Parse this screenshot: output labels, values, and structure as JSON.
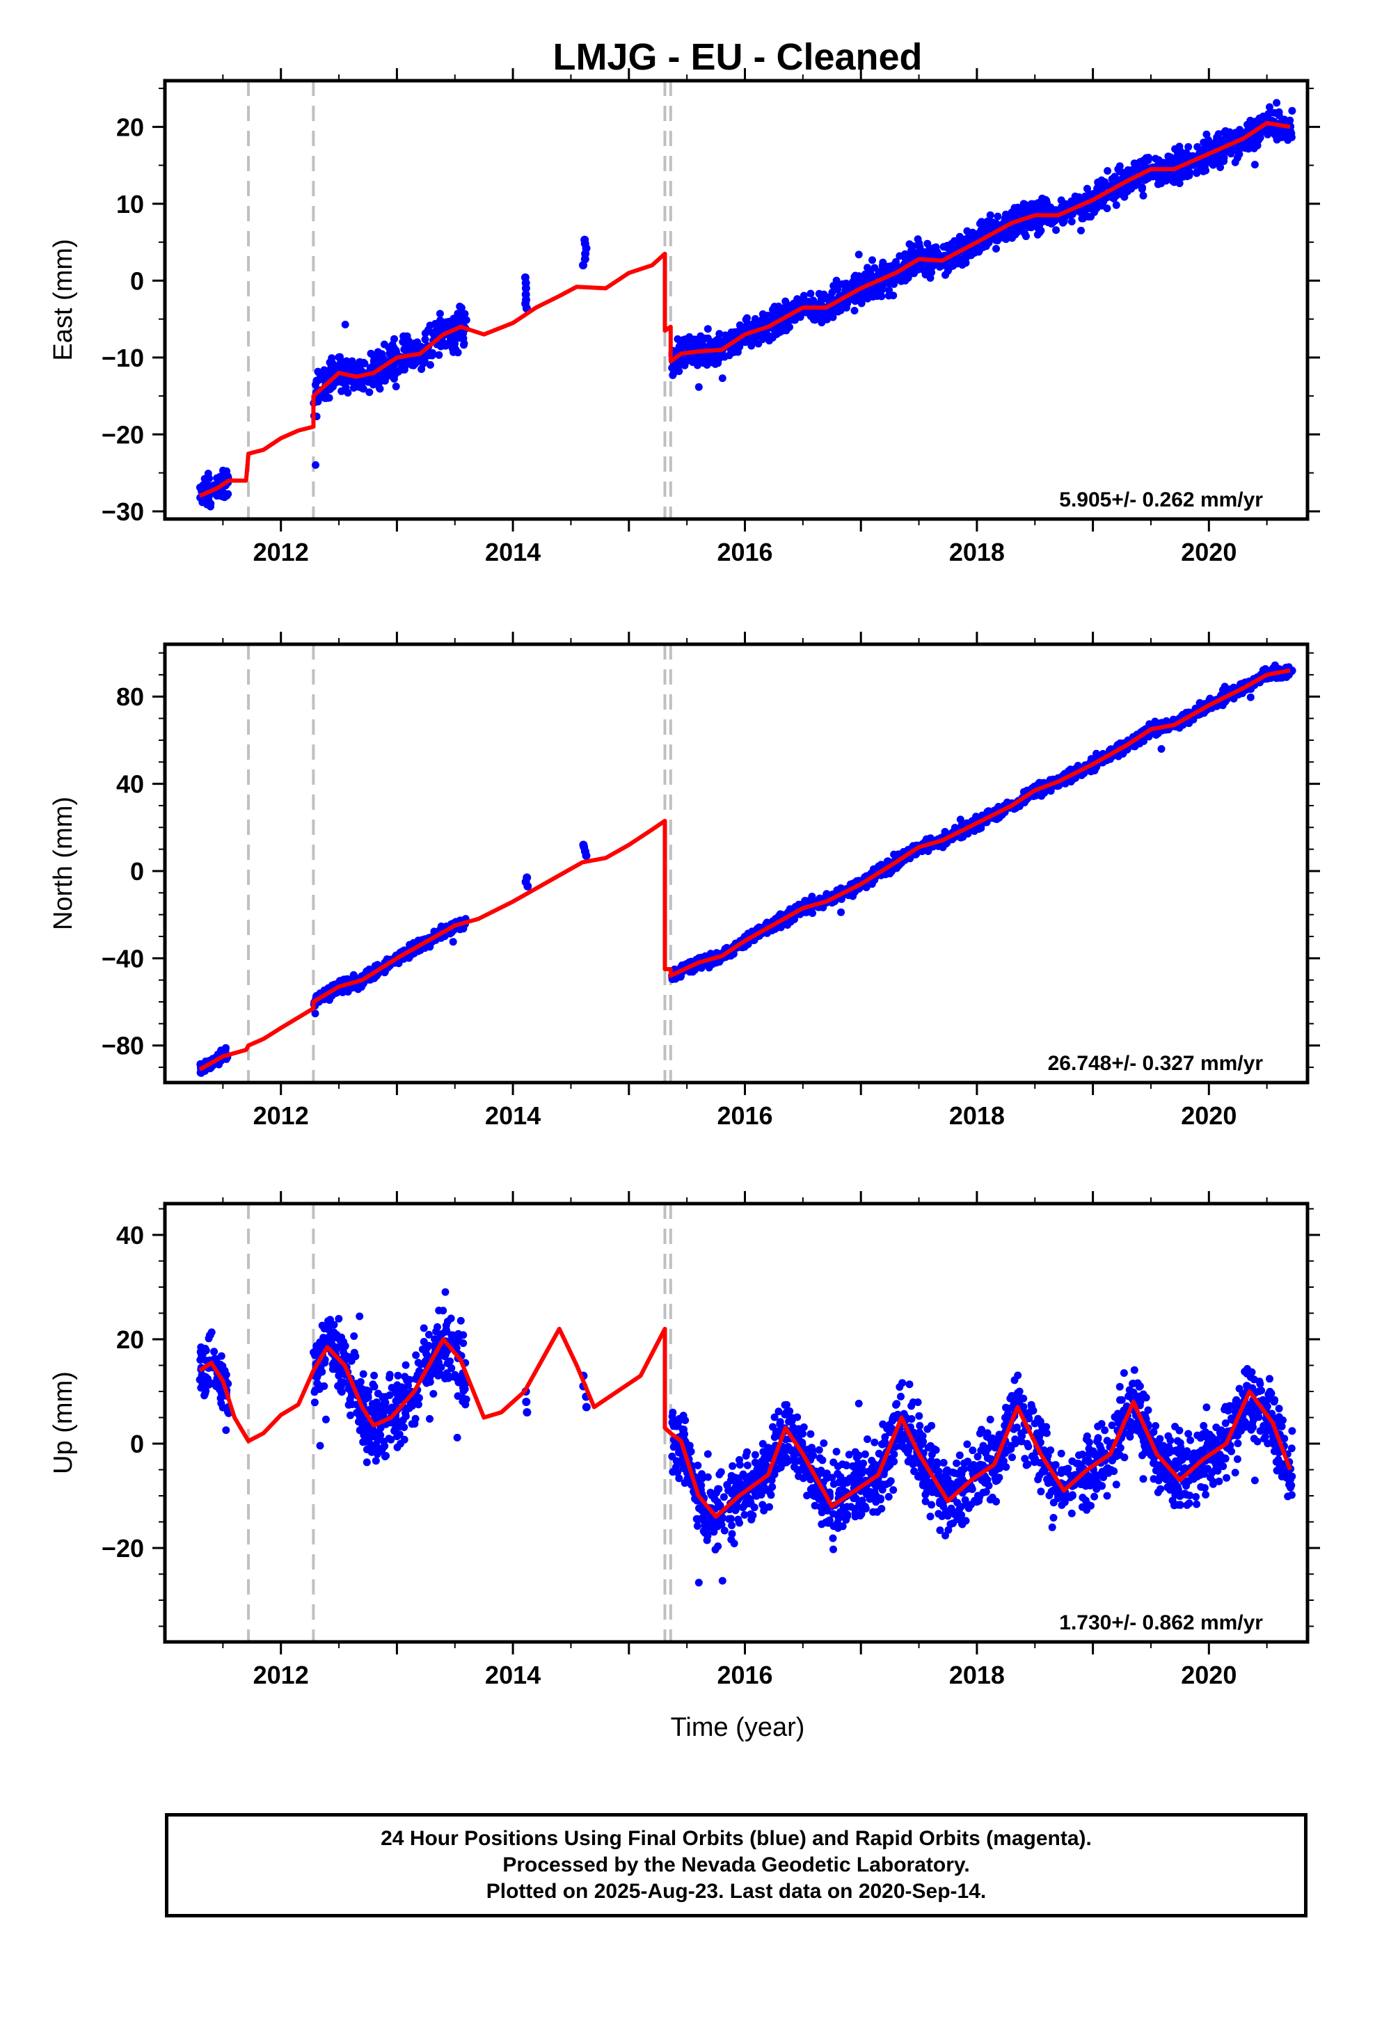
{
  "chart_data": {
    "title": "LMJG  - EU - Cleaned",
    "type": "scatter",
    "xlabel": "Time (year)",
    "xlim": [
      2011.0,
      2020.85
    ],
    "x_ticks": [
      "2012",
      "2014",
      "2016",
      "2018",
      "2020"
    ],
    "colors": {
      "final_orbits": "#0000ff",
      "model": "#ff0000",
      "breaks": "#c0c0c0"
    },
    "breaks": [
      2011.72,
      2012.28,
      2015.31,
      2015.36
    ],
    "panels": [
      {
        "name": "East",
        "ylabel": "East (mm)",
        "ylim": [
          -31,
          26
        ],
        "y_ticks": [
          "20",
          "10",
          "0",
          "−10",
          "−20",
          "−30"
        ],
        "rate": "5.905+/- 0.262 mm/yr",
        "model": [
          [
            2011.3,
            -28
          ],
          [
            2011.45,
            -27
          ],
          [
            2011.55,
            -26
          ],
          [
            2011.7,
            -26
          ],
          [
            2011.72,
            -22.5
          ],
          [
            2011.85,
            -22
          ],
          [
            2012.0,
            -20.5
          ],
          [
            2012.15,
            -19.5
          ],
          [
            2012.28,
            -19
          ],
          [
            2012.28,
            -15
          ],
          [
            2012.5,
            -12
          ],
          [
            2012.65,
            -12.5
          ],
          [
            2012.8,
            -12
          ],
          [
            2013.0,
            -10
          ],
          [
            2013.2,
            -9.5
          ],
          [
            2013.4,
            -7
          ],
          [
            2013.55,
            -6
          ],
          [
            2013.75,
            -7
          ],
          [
            2014.0,
            -5.5
          ],
          [
            2014.2,
            -3.5
          ],
          [
            2014.4,
            -2
          ],
          [
            2014.55,
            -0.8
          ],
          [
            2014.8,
            -1
          ],
          [
            2015.0,
            1
          ],
          [
            2015.2,
            2
          ],
          [
            2015.31,
            3.5
          ],
          [
            2015.31,
            -6.5
          ],
          [
            2015.36,
            -6
          ],
          [
            2015.36,
            -10.5
          ],
          [
            2015.45,
            -9.5
          ],
          [
            2015.6,
            -9.2
          ],
          [
            2015.8,
            -9
          ],
          [
            2016.0,
            -7
          ],
          [
            2016.2,
            -6
          ],
          [
            2016.5,
            -3.5
          ],
          [
            2016.7,
            -3.5
          ],
          [
            2017.0,
            -1
          ],
          [
            2017.3,
            1
          ],
          [
            2017.5,
            2.8
          ],
          [
            2017.7,
            2.6
          ],
          [
            2018.0,
            5
          ],
          [
            2018.3,
            7.5
          ],
          [
            2018.5,
            8.5
          ],
          [
            2018.7,
            8.5
          ],
          [
            2019.0,
            10.5
          ],
          [
            2019.3,
            13
          ],
          [
            2019.5,
            14.5
          ],
          [
            2019.7,
            14.5
          ],
          [
            2020.0,
            16.5
          ],
          [
            2020.3,
            18.5
          ],
          [
            2020.5,
            20.5
          ],
          [
            2020.7,
            20
          ]
        ],
        "segments": [
          {
            "x": [
              2011.3,
              2011.55
            ],
            "noise": 1.4
          },
          {
            "x": [
              2012.28,
              2013.6
            ],
            "noise": 1.8
          },
          {
            "x": [
              2015.37,
              2020.72
            ],
            "noise": 1.4
          }
        ],
        "clusters": [
          {
            "x": 2014.12,
            "y": [
              -3.6,
              -3.0,
              -2.5,
              -1.8,
              -1.0,
              -0.3,
              0.4
            ]
          },
          {
            "x": 2014.62,
            "y": [
              2.0,
              2.8,
              3.5,
              4.2,
              4.8,
              5.3
            ]
          }
        ]
      },
      {
        "name": "North",
        "ylabel": "North (mm)",
        "ylim": [
          -97,
          104
        ],
        "y_ticks": [
          "80",
          "40",
          "0",
          "−40",
          "−80"
        ],
        "rate": "26.748+/- 0.327 mm/yr",
        "model": [
          [
            2011.3,
            -91
          ],
          [
            2011.5,
            -85
          ],
          [
            2011.7,
            -82
          ],
          [
            2011.72,
            -80
          ],
          [
            2011.85,
            -77
          ],
          [
            2012.0,
            -72
          ],
          [
            2012.28,
            -63
          ],
          [
            2012.28,
            -60
          ],
          [
            2012.5,
            -53
          ],
          [
            2012.7,
            -50
          ],
          [
            2013.0,
            -40
          ],
          [
            2013.3,
            -31
          ],
          [
            2013.5,
            -25
          ],
          [
            2013.7,
            -22
          ],
          [
            2014.0,
            -14
          ],
          [
            2014.3,
            -5
          ],
          [
            2014.6,
            4
          ],
          [
            2014.8,
            6
          ],
          [
            2015.0,
            12
          ],
          [
            2015.2,
            19
          ],
          [
            2015.31,
            23
          ],
          [
            2015.31,
            -45
          ],
          [
            2015.36,
            -45
          ],
          [
            2015.36,
            -48
          ],
          [
            2015.6,
            -42
          ],
          [
            2015.8,
            -39
          ],
          [
            2016.0,
            -32
          ],
          [
            2016.3,
            -23
          ],
          [
            2016.5,
            -17
          ],
          [
            2016.7,
            -14
          ],
          [
            2017.0,
            -6
          ],
          [
            2017.3,
            4
          ],
          [
            2017.5,
            11
          ],
          [
            2017.7,
            14
          ],
          [
            2018.0,
            22
          ],
          [
            2018.3,
            30
          ],
          [
            2018.5,
            37
          ],
          [
            2018.7,
            41
          ],
          [
            2019.0,
            49
          ],
          [
            2019.3,
            58
          ],
          [
            2019.5,
            65
          ],
          [
            2019.7,
            67
          ],
          [
            2020.0,
            76
          ],
          [
            2020.3,
            84
          ],
          [
            2020.5,
            90
          ],
          [
            2020.7,
            92
          ]
        ],
        "segments": [
          {
            "x": [
              2011.3,
              2011.55
            ],
            "noise": 2.0
          },
          {
            "x": [
              2012.28,
              2013.6
            ],
            "noise": 2.0
          },
          {
            "x": [
              2015.37,
              2020.72
            ],
            "noise": 2.0
          }
        ],
        "clusters": [
          {
            "x": 2014.12,
            "y": [
              -7,
              -5,
              -3
            ]
          },
          {
            "x": 2014.62,
            "y": [
              7,
              9,
              11,
              12
            ]
          }
        ]
      },
      {
        "name": "Up",
        "ylabel": "Up (mm)",
        "ylim": [
          -38,
          46
        ],
        "y_ticks": [
          "40",
          "20",
          "0",
          "−20"
        ],
        "rate": "1.730+/- 0.862 mm/yr",
        "model": [
          [
            2011.3,
            14
          ],
          [
            2011.4,
            15.5
          ],
          [
            2011.5,
            12
          ],
          [
            2011.6,
            5
          ],
          [
            2011.72,
            0.5
          ],
          [
            2011.85,
            2
          ],
          [
            2012.0,
            5.5
          ],
          [
            2012.15,
            7.5
          ],
          [
            2012.28,
            14
          ],
          [
            2012.4,
            18.5
          ],
          [
            2012.55,
            15
          ],
          [
            2012.7,
            7
          ],
          [
            2012.8,
            3.5
          ],
          [
            2012.95,
            5
          ],
          [
            2013.15,
            10
          ],
          [
            2013.4,
            20
          ],
          [
            2013.55,
            16
          ],
          [
            2013.75,
            5
          ],
          [
            2013.9,
            6
          ],
          [
            2014.1,
            10
          ],
          [
            2014.25,
            16
          ],
          [
            2014.4,
            22
          ],
          [
            2014.55,
            15
          ],
          [
            2014.7,
            7
          ],
          [
            2014.9,
            10
          ],
          [
            2015.1,
            13
          ],
          [
            2015.31,
            22
          ],
          [
            2015.31,
            3
          ],
          [
            2015.36,
            2
          ],
          [
            2015.45,
            0.5
          ],
          [
            2015.6,
            -10
          ],
          [
            2015.75,
            -14
          ],
          [
            2015.95,
            -10
          ],
          [
            2016.2,
            -6
          ],
          [
            2016.35,
            3
          ],
          [
            2016.5,
            -2
          ],
          [
            2016.75,
            -12
          ],
          [
            2016.95,
            -9
          ],
          [
            2017.15,
            -6
          ],
          [
            2017.35,
            5
          ],
          [
            2017.5,
            -2
          ],
          [
            2017.75,
            -11
          ],
          [
            2017.95,
            -7
          ],
          [
            2018.15,
            -4
          ],
          [
            2018.35,
            7
          ],
          [
            2018.55,
            -2
          ],
          [
            2018.75,
            -9
          ],
          [
            2018.95,
            -5
          ],
          [
            2019.15,
            -2
          ],
          [
            2019.35,
            8
          ],
          [
            2019.55,
            -2
          ],
          [
            2019.75,
            -7
          ],
          [
            2019.95,
            -3
          ],
          [
            2020.15,
            0
          ],
          [
            2020.35,
            10
          ],
          [
            2020.55,
            4
          ],
          [
            2020.7,
            -5
          ]
        ],
        "segments": [
          {
            "x": [
              2011.3,
              2011.55
            ],
            "noise": 4.0
          },
          {
            "x": [
              2012.28,
              2013.6
            ],
            "noise": 5.0
          },
          {
            "x": [
              2015.37,
              2020.72
            ],
            "noise": 5.0
          }
        ],
        "clusters": [
          {
            "x": 2014.12,
            "y": [
              6,
              8,
              10
            ]
          },
          {
            "x": 2014.62,
            "y": [
              7,
              9,
              11,
              13
            ]
          }
        ]
      }
    ]
  },
  "footer": {
    "line1": "24 Hour Positions Using Final Orbits (blue) and Rapid Orbits (magenta).",
    "line2": "Processed by the Nevada Geodetic Laboratory.",
    "line3": "Plotted on 2025-Aug-23. Last data on 2020-Sep-14."
  }
}
